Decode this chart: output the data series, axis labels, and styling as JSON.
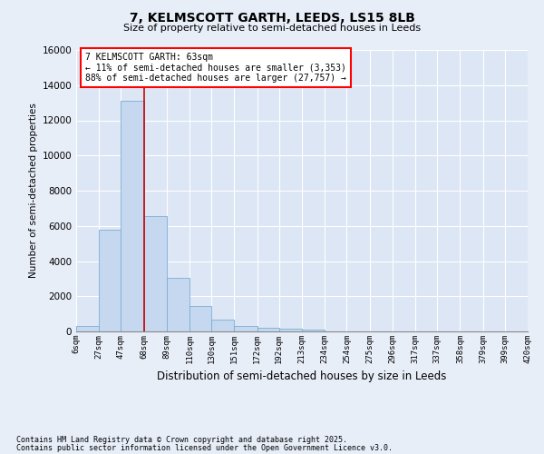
{
  "title": "7, KELMSCOTT GARTH, LEEDS, LS15 8LB",
  "subtitle": "Size of property relative to semi-detached houses in Leeds",
  "xlabel": "Distribution of semi-detached houses by size in Leeds",
  "ylabel": "Number of semi-detached properties",
  "bar_color": "#c5d8ef",
  "bar_edge_color": "#7aadd4",
  "background_color": "#dce6f5",
  "fig_background_color": "#e8eef8",
  "grid_color": "#ffffff",
  "vline_color": "#cc0000",
  "vline_x": 68,
  "annotation_title": "7 KELMSCOTT GARTH: 63sqm",
  "annotation_line1": "← 11% of semi-detached houses are smaller (3,353)",
  "annotation_line2": "88% of semi-detached houses are larger (27,757) →",
  "footnote1": "Contains HM Land Registry data © Crown copyright and database right 2025.",
  "footnote2": "Contains public sector information licensed under the Open Government Licence v3.0.",
  "bins": [
    6,
    27,
    47,
    68,
    89,
    110,
    130,
    151,
    172,
    192,
    213,
    234,
    254,
    275,
    296,
    317,
    337,
    358,
    379,
    399,
    420
  ],
  "bin_labels": [
    "6sqm",
    "27sqm",
    "47sqm",
    "68sqm",
    "89sqm",
    "110sqm",
    "130sqm",
    "151sqm",
    "172sqm",
    "192sqm",
    "213sqm",
    "234sqm",
    "254sqm",
    "275sqm",
    "296sqm",
    "317sqm",
    "337sqm",
    "358sqm",
    "379sqm",
    "399sqm",
    "420sqm"
  ],
  "counts": [
    320,
    5800,
    13100,
    6550,
    3050,
    1450,
    650,
    300,
    200,
    130,
    80,
    0,
    0,
    0,
    0,
    0,
    0,
    0,
    0,
    0
  ],
  "ylim": [
    0,
    16000
  ],
  "yticks": [
    0,
    2000,
    4000,
    6000,
    8000,
    10000,
    12000,
    14000,
    16000
  ]
}
